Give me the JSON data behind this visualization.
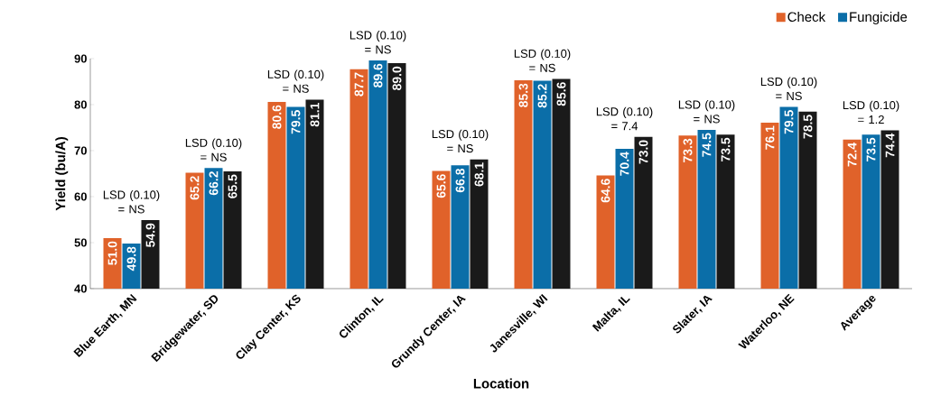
{
  "chart_data": {
    "type": "bar",
    "xlabel": "Location",
    "ylabel": "Yield (bu/A)",
    "categories": [
      "Blue Earth, MN",
      "Bridgewater, SD",
      "Clay Center, KS",
      "Clinton, IL",
      "Grundy Center, IA",
      "Janesville, WI",
      "Malta, IL",
      "Slater, IA",
      "Waterloo, NE",
      "Average"
    ],
    "series": [
      {
        "name": "Check",
        "color": "#e0622a",
        "values": [
          51.0,
          65.2,
          80.6,
          87.7,
          65.6,
          85.3,
          64.6,
          73.3,
          76.1,
          72.4
        ],
        "value_labels": [
          "51.0",
          "65.2",
          "80.6",
          "87.7",
          "65.6",
          "85.3",
          "64.6",
          "73.3",
          "76.1",
          "72.4"
        ]
      },
      {
        "name": "Fungicide",
        "color": "#0b6ea8",
        "values": [
          49.8,
          66.2,
          79.5,
          89.6,
          66.8,
          85.2,
          70.4,
          74.5,
          79.5,
          73.5
        ],
        "value_labels": [
          "49.8",
          "66.2",
          "79.5",
          "89.6",
          "66.8",
          "85.2",
          "70.4",
          "74.5",
          "79.5",
          "73.5"
        ]
      },
      {
        "color": "#1a1a1a",
        "values": [
          54.9,
          65.5,
          81.1,
          89.0,
          68.1,
          85.6,
          73.0,
          73.5,
          78.5,
          74.4
        ],
        "value_labels": [
          "54.9",
          "65.5",
          "81.1",
          "89.0",
          "68.1",
          "85.6",
          "73.0",
          "73.5",
          "78.5",
          "74.4"
        ]
      }
    ],
    "annotations": [
      "LSD (0.10) = NS",
      "LSD (0.10) = NS",
      "LSD (0.10) = NS",
      "LSD (0.10) = NS",
      "LSD (0.10) = NS",
      "LSD (0.10) = NS",
      "LSD (0.10) = 7.4",
      "LSD (0.10) = NS",
      "LSD (0.10) = NS",
      "LSD (0.10) = 1.2"
    ],
    "ylim": [
      40,
      90
    ],
    "yticks": [
      40,
      50,
      60,
      70,
      80,
      90
    ],
    "legend": "top right",
    "grid": false
  }
}
